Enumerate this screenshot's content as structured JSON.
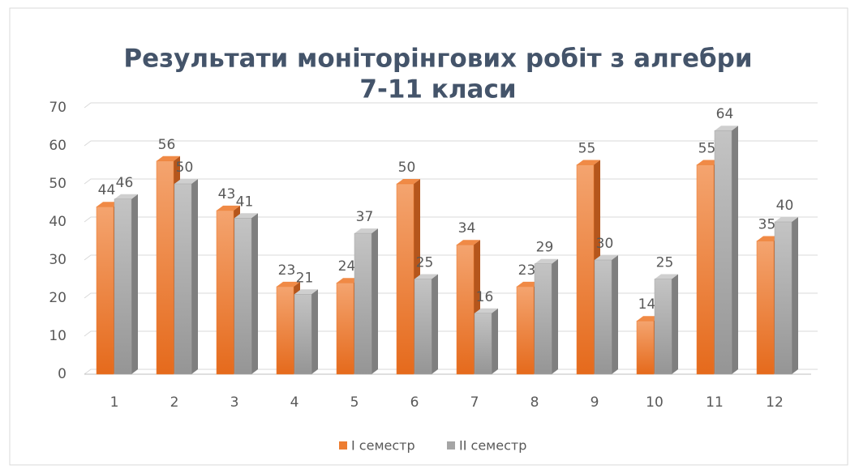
{
  "chart_data": {
    "type": "bar3d",
    "title": "Результати моніторінгових робіт з алгебри",
    "subtitle": "7-11 класи",
    "categories": [
      "1",
      "2",
      "3",
      "4",
      "5",
      "6",
      "7",
      "8",
      "9",
      "10",
      "11",
      "12"
    ],
    "series": [
      {
        "name": "I семестр",
        "color": "#ed7d31",
        "values": [
          44,
          56,
          43,
          23,
          24,
          50,
          34,
          23,
          55,
          14,
          55,
          35
        ]
      },
      {
        "name": "II семестр",
        "color": "#a5a5a5",
        "values": [
          46,
          50,
          41,
          21,
          37,
          25,
          16,
          29,
          30,
          25,
          64,
          40
        ]
      }
    ],
    "ylim": [
      0,
      70
    ],
    "yticks": [
      0,
      10,
      20,
      30,
      40,
      50,
      60,
      70
    ],
    "grid": true,
    "legend": "bottom"
  }
}
